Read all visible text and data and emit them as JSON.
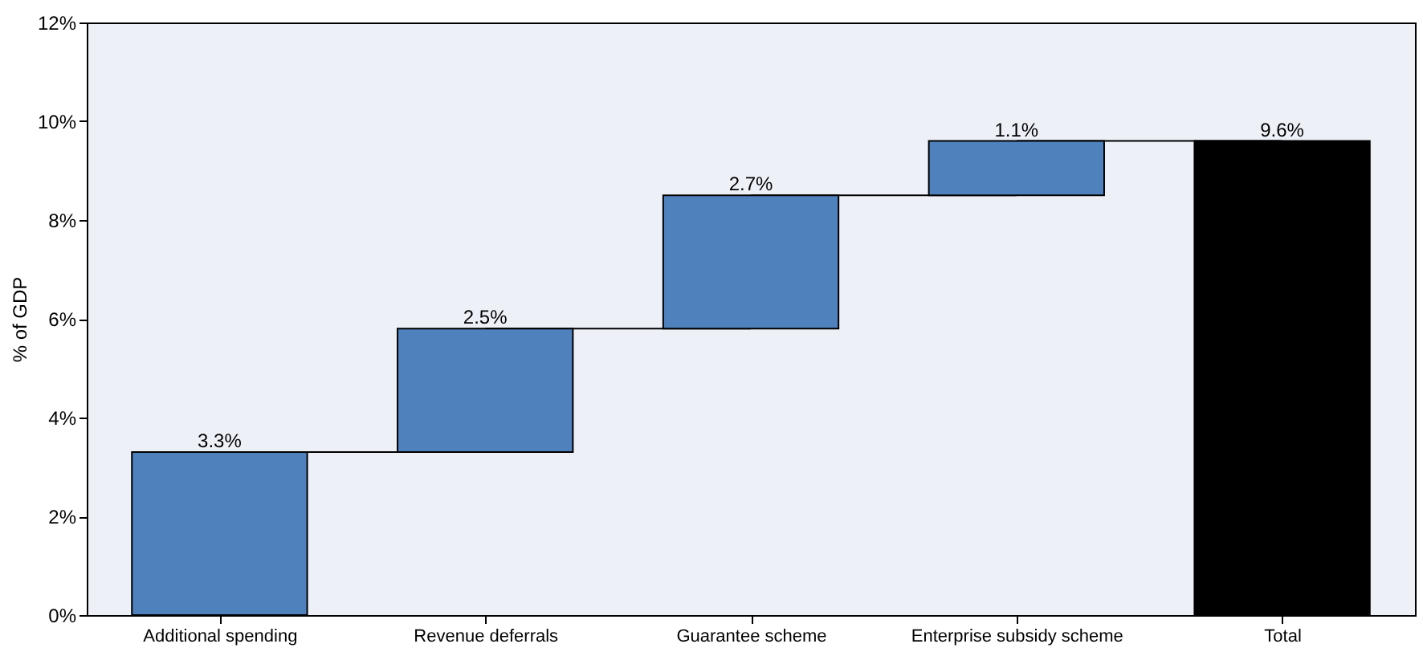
{
  "chart_data": {
    "type": "bar",
    "ylabel": "% of GDP",
    "categories": [
      "Additional spending",
      "Revenue deferrals",
      "Guarantee scheme",
      "Enterprise subsidy scheme",
      "Total"
    ],
    "values": [
      3.3,
      2.5,
      2.7,
      1.1,
      9.6
    ],
    "base": [
      0,
      3.3,
      5.8,
      8.5,
      0
    ],
    "colors": [
      "#4f81bd",
      "#4f81bd",
      "#4f81bd",
      "#4f81bd",
      "#000000"
    ],
    "value_labels": [
      "3.3%",
      "2.5%",
      "2.7%",
      "1.1%",
      "9.6%"
    ],
    "ylim": [
      0,
      12
    ],
    "yticks": [
      {
        "value": 0,
        "label": "0%"
      },
      {
        "value": 2,
        "label": "2%"
      },
      {
        "value": 4,
        "label": "4%"
      },
      {
        "value": 6,
        "label": "6%"
      },
      {
        "value": 8,
        "label": "8%"
      },
      {
        "value": 10,
        "label": "10%"
      },
      {
        "value": 12,
        "label": "12%"
      }
    ],
    "grid": false
  }
}
